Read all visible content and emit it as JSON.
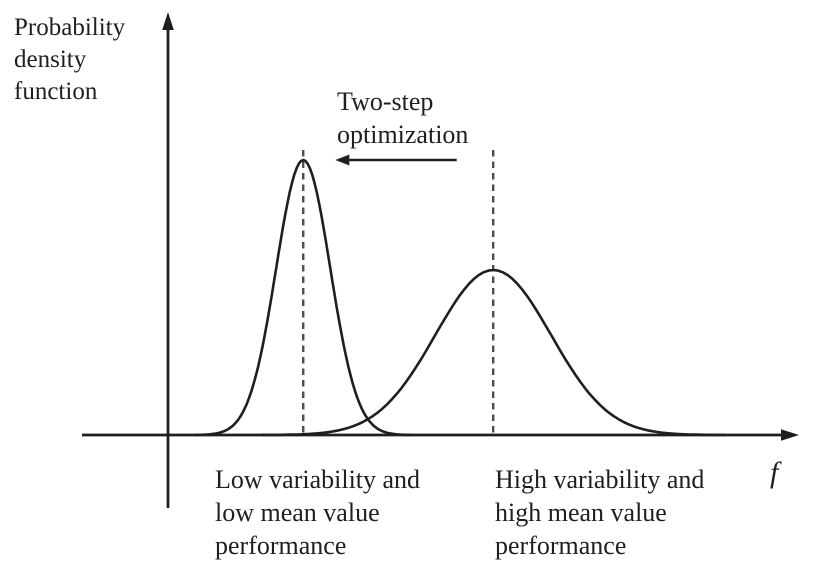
{
  "figure": {
    "kind": "probability-density-comparison-diagram",
    "background": "#ffffff",
    "ink_color": "#1f1f1f",
    "dashed_line_color": "#4d4d4d"
  },
  "labels": {
    "y_axis": {
      "text": "Probability density function",
      "lines": [
        "Probability",
        "density",
        "function"
      ]
    },
    "x_axis": "f",
    "annotation": {
      "text": "Two-step optimization",
      "lines": [
        "Two-step",
        "optimization"
      ]
    },
    "left_curve": {
      "text": "Low variability and low mean value performance",
      "lines": [
        "Low variability and",
        "low mean value",
        "performance"
      ]
    },
    "right_curve": {
      "text": "High variability and high mean value performance",
      "lines": [
        "High variability and",
        "high mean value",
        "performance"
      ]
    }
  },
  "chart_data": {
    "type": "line",
    "title": "",
    "xlabel": "f",
    "ylabel": "Probability density function",
    "grid": false,
    "legend": false,
    "axes": {
      "x_range_normalized": [
        0,
        1
      ],
      "y_range_normalized": [
        0,
        1.1
      ],
      "ticks": []
    },
    "series": [
      {
        "name": "Low variability and low mean value performance",
        "shape": "gaussian",
        "mean": 0.215,
        "sd": 0.043,
        "peak": 1.0,
        "dashed_marker_at_mean": true
      },
      {
        "name": "High variability and high mean value performance",
        "shape": "gaussian",
        "mean": 0.517,
        "sd": 0.092,
        "peak": 0.6,
        "dashed_marker_at_mean": true
      }
    ],
    "annotations": [
      {
        "type": "arrow",
        "text": "Two-step optimization",
        "direction": "left",
        "x_from": 0.459,
        "x_to": 0.266,
        "y": 1.0
      }
    ]
  }
}
